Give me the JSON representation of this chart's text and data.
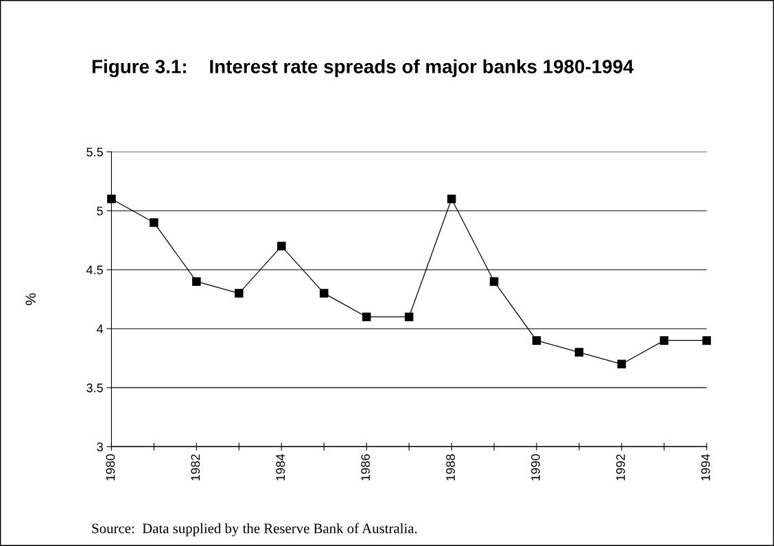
{
  "chart_data": {
    "type": "line",
    "title": "Figure 3.1:    Interest rate spreads of major banks 1980-1994",
    "ylabel": "%",
    "x": [
      1980,
      1981,
      1982,
      1983,
      1984,
      1985,
      1986,
      1987,
      1988,
      1989,
      1990,
      1991,
      1992,
      1993,
      1994
    ],
    "series": [
      {
        "color": "#000000",
        "values": [
          5.1,
          4.9,
          4.4,
          4.3,
          4.7,
          4.3,
          4.1,
          4.1,
          5.1,
          4.4,
          3.9,
          3.8,
          3.7,
          3.9,
          3.9
        ]
      }
    ],
    "xlim": [
      1980,
      1994
    ],
    "xticks": [
      1980,
      {
        "value": 1981,
        "label": null
      },
      1982,
      {
        "value": 1983,
        "label": null
      },
      1984,
      {
        "value": 1985,
        "label": null
      },
      1986,
      {
        "value": 1987,
        "label": null
      },
      1988,
      {
        "value": 1989,
        "label": null
      },
      1990,
      {
        "value": 1991,
        "label": null
      },
      1992,
      {
        "value": 1993,
        "label": null
      },
      1994
    ],
    "ylim": [
      3,
      5.5
    ],
    "yticks": [
      3,
      3.5,
      4,
      4.5,
      5,
      5.5
    ],
    "grid": "y",
    "marker": "square",
    "line_style": "solid",
    "legend": false,
    "annotations": [
      "Source:  Data supplied by the Reserve Bank of Australia."
    ]
  }
}
